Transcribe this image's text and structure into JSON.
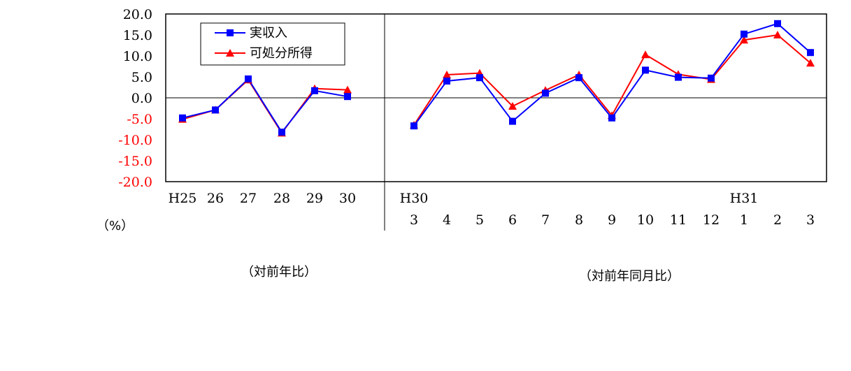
{
  "unit_label": "（%）",
  "caption_left": "（対前年比）",
  "caption_right": "（対前年同月比）",
  "chart_data": {
    "type": "line",
    "ylim": [
      -20,
      20
    ],
    "yticks": [
      "20.0",
      "15.0",
      "10.0",
      "5.0",
      "0.0",
      "-5.0",
      "-10.0",
      "-15.0",
      "-20.0"
    ],
    "negative_tick_color": "#ff0000",
    "legend": {
      "placement": "top-left",
      "entries": [
        "実収入",
        "可処分所得"
      ]
    },
    "series": [
      {
        "name": "実収入",
        "color": "#0000ff",
        "marker": "square"
      },
      {
        "name": "可処分所得",
        "color": "#ff0000",
        "marker": "triangle"
      }
    ],
    "panels": [
      {
        "x_labels_top": [
          "H25",
          "26",
          "27",
          "28",
          "29",
          "30"
        ],
        "x_labels_bottom": [],
        "values": [
          [
            -4.8,
            -2.9,
            4.5,
            -8.2,
            1.7,
            0.3
          ],
          [
            -5.1,
            -2.9,
            4.3,
            -8.4,
            2.2,
            1.9
          ]
        ]
      },
      {
        "x_labels_top": [
          "H30",
          "",
          "",
          "",
          "",
          "",
          "",
          "",
          "",
          "",
          "H31",
          "",
          ""
        ],
        "x_labels_bottom": [
          "3",
          "4",
          "5",
          "6",
          "7",
          "8",
          "9",
          "10",
          "11",
          "12",
          "1",
          "2",
          "3"
        ],
        "values": [
          [
            -6.7,
            4.0,
            4.8,
            -5.6,
            1.1,
            4.8,
            -4.8,
            6.6,
            4.9,
            4.7,
            15.2,
            17.7,
            10.8
          ],
          [
            -6.5,
            5.5,
            5.9,
            -2.0,
            1.8,
            5.5,
            -4.2,
            10.3,
            5.6,
            4.4,
            13.8,
            15.0,
            8.3
          ]
        ]
      }
    ]
  }
}
